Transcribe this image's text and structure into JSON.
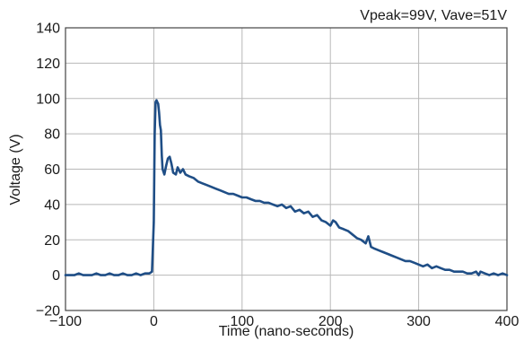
{
  "chart_data": {
    "type": "line",
    "title": "",
    "annotation": "Vpeak=99V, Vave=51V",
    "xlabel": "Time (nano-seconds)",
    "ylabel": "Voltage (V)",
    "xlim": [
      -100,
      400
    ],
    "ylim": [
      -20,
      140
    ],
    "xticks": [
      -100,
      0,
      100,
      200,
      300,
      400
    ],
    "yticks": [
      -20,
      0,
      20,
      40,
      60,
      80,
      100,
      120,
      140
    ],
    "xtick_labels": [
      "−100",
      "0",
      "100",
      "200",
      "300",
      "400"
    ],
    "ytick_labels": [
      "−20",
      "0",
      "20",
      "40",
      "60",
      "80",
      "100",
      "120",
      "140"
    ],
    "grid": true,
    "legend": "none",
    "series_color": "#1f4e86",
    "series": [
      {
        "x": [
          -100,
          -90,
          -85,
          -80,
          -75,
          -70,
          -65,
          -60,
          -55,
          -50,
          -45,
          -40,
          -35,
          -30,
          -25,
          -20,
          -15,
          -10,
          -5,
          -2,
          0,
          1,
          2,
          3,
          4,
          5,
          6,
          7,
          8,
          9,
          10,
          12,
          14,
          16,
          18,
          20,
          22,
          25,
          27,
          30,
          33,
          36,
          40,
          45,
          50,
          55,
          60,
          65,
          70,
          75,
          80,
          85,
          90,
          95,
          100,
          105,
          110,
          115,
          120,
          125,
          130,
          135,
          140,
          145,
          150,
          155,
          160,
          165,
          170,
          175,
          180,
          185,
          190,
          195,
          200,
          203,
          206,
          210,
          215,
          220,
          225,
          230,
          235,
          240,
          243,
          246,
          250,
          255,
          260,
          265,
          270,
          275,
          280,
          285,
          290,
          295,
          300,
          305,
          310,
          315,
          320,
          325,
          330,
          335,
          340,
          345,
          350,
          355,
          360,
          365,
          368,
          370,
          375,
          380,
          385,
          390,
          395,
          400
        ],
        "y": [
          0,
          0,
          1,
          0,
          0,
          0,
          1,
          0,
          0,
          1,
          0,
          0,
          1,
          0,
          0,
          1,
          0,
          1,
          1,
          2,
          30,
          80,
          98,
          99,
          98,
          97,
          92,
          85,
          82,
          68,
          60,
          57,
          62,
          66,
          67,
          63,
          58,
          57,
          61,
          58,
          60,
          57,
          56,
          55,
          53,
          52,
          51,
          50,
          49,
          48,
          47,
          46,
          46,
          45,
          44,
          44,
          43,
          42,
          42,
          41,
          41,
          40,
          39,
          40,
          38,
          39,
          36,
          37,
          35,
          36,
          33,
          34,
          31,
          30,
          28,
          31,
          30,
          27,
          26,
          25,
          23,
          21,
          20,
          18,
          22,
          16,
          15,
          14,
          13,
          12,
          11,
          10,
          9,
          8,
          8,
          7,
          6,
          5,
          6,
          4,
          5,
          4,
          3,
          3,
          2,
          2,
          2,
          1,
          1,
          2,
          0,
          2,
          1,
          0,
          1,
          0,
          1,
          0
        ]
      }
    ]
  }
}
